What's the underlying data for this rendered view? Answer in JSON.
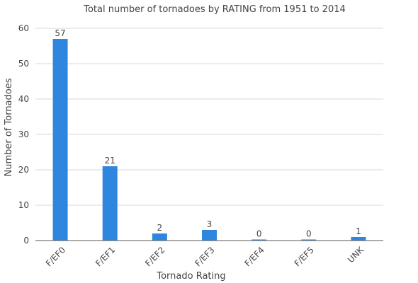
{
  "chart_data": {
    "type": "bar",
    "title": "Total number of tornadoes by RATING from 1951 to 2014",
    "xlabel": "Tornado Rating",
    "ylabel": "Number of Tornadoes",
    "categories": [
      "F/EF0",
      "F/EF1",
      "F/EF2",
      "F/EF3",
      "F/EF4",
      "F/EF5",
      "UNK"
    ],
    "values": [
      57,
      21,
      2,
      3,
      0,
      0,
      1
    ],
    "ylim": [
      0,
      60
    ],
    "yticks": [
      0,
      10,
      20,
      30,
      40,
      50,
      60
    ],
    "grid": true,
    "legend": "none",
    "bar_color": "#2e86de"
  }
}
